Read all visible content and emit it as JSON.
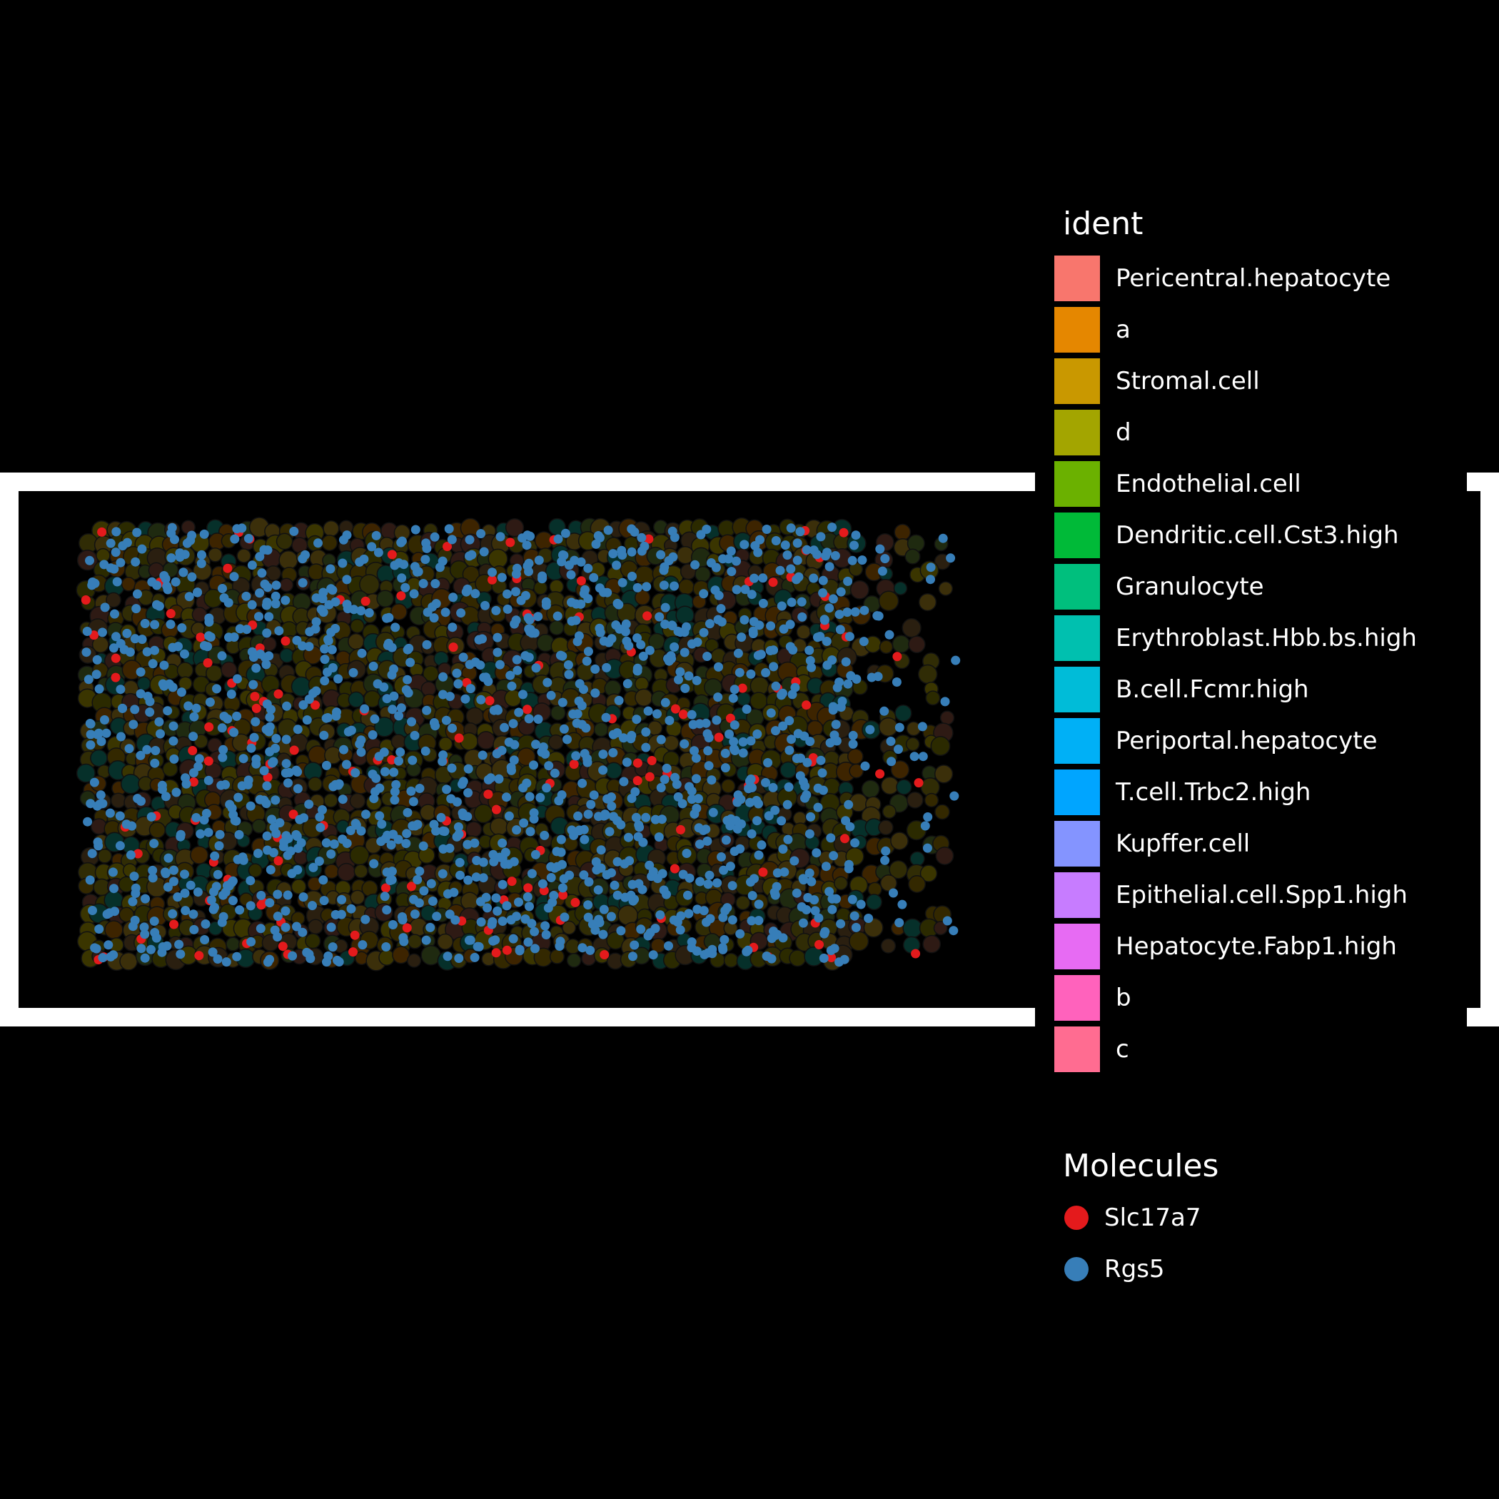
{
  "chart_data": {
    "type": "scatter",
    "title": "",
    "xlabel": "",
    "ylabel": "",
    "background": "#000000",
    "frame_color": "#ffffff",
    "cell_fill_colors": [
      "#2b2a00",
      "#3a3500",
      "#332800",
      "#3d2400",
      "#2a1f10",
      "#302c05",
      "#1f2a10",
      "#3b2f0a",
      "#2e1a14",
      "#06302a"
    ],
    "cell_border_color": "#111111",
    "legend_ident": {
      "title": "ident",
      "placement": "right",
      "items": [
        {
          "label": "Pericentral.hepatocyte",
          "color": "#F8766D"
        },
        {
          "label": "a",
          "color": "#E58700"
        },
        {
          "label": "Stromal.cell",
          "color": "#C99800"
        },
        {
          "label": "d",
          "color": "#A3A500"
        },
        {
          "label": "Endothelial.cell",
          "color": "#6BB100"
        },
        {
          "label": "Dendritic.cell.Cst3.high",
          "color": "#00BA38"
        },
        {
          "label": "Granulocyte",
          "color": "#00BF7D"
        },
        {
          "label": "Erythroblast.Hbb.bs.high",
          "color": "#00C0AF"
        },
        {
          "label": "B.cell.Fcmr.high",
          "color": "#00BCD8"
        },
        {
          "label": "Periportal.hepatocyte",
          "color": "#00B0F6"
        },
        {
          "label": "T.cell.Trbc2.high",
          "color": "#00A5FF"
        },
        {
          "label": "Kupffer.cell",
          "color": "#8494FF"
        },
        {
          "label": "Epithelial.cell.Spp1.high",
          "color": "#C77CFF"
        },
        {
          "label": "Hepatocyte.Fabp1.high",
          "color": "#E76BF3"
        },
        {
          "label": "b",
          "color": "#FF62BC"
        },
        {
          "label": "c",
          "color": "#FF6C91"
        }
      ]
    },
    "legend_molecules": {
      "title": "Molecules",
      "placement": "right",
      "items": [
        {
          "label": "Slc17a7",
          "color": "#E41A1C"
        },
        {
          "label": "Rgs5",
          "color": "#377EB8"
        }
      ]
    },
    "series": [
      {
        "name": "Slc17a7",
        "color": "#E41A1C",
        "approx_count": 150
      },
      {
        "name": "Rgs5",
        "color": "#377EB8",
        "approx_count": 1400
      }
    ],
    "sample_region": {
      "xlim": [
        0,
        1
      ],
      "ylim": [
        0,
        1
      ]
    }
  }
}
